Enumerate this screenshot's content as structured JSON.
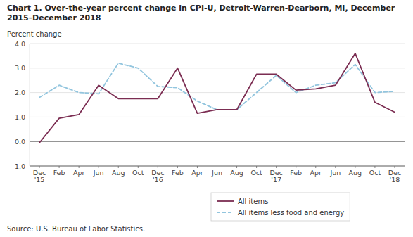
{
  "chart_data": {
    "type": "line",
    "title": "Chart 1. Over-the-year percent change in CPI-U, Detroit-Warren-Dearborn, MI, December\n2015–December 2018",
    "y_label": "Percent change",
    "annotations": [
      "Source: U.S. Bureau of Labor Statistics."
    ],
    "categories": [
      "Dec\n'15",
      "Feb",
      "Apr",
      "Jun",
      "Aug",
      "Oct",
      "Dec\n'16",
      "Feb",
      "Apr",
      "Jun",
      "Aug",
      "Oct",
      "Dec\n'17",
      "Feb",
      "Apr",
      "Jun",
      "Aug",
      "Oct",
      "Dec\n'18"
    ],
    "series": [
      {
        "name": "All items",
        "color": "#7b2d52",
        "line_style": "solid",
        "values": [
          -0.05,
          0.95,
          1.1,
          2.3,
          1.75,
          1.75,
          1.75,
          3.0,
          1.15,
          1.3,
          1.3,
          2.75,
          2.75,
          2.1,
          2.15,
          2.3,
          3.6,
          1.6,
          1.2
        ]
      },
      {
        "name": "All items less food and energy",
        "color": "#92c5de",
        "line_style": "dashed",
        "values": [
          1.8,
          2.3,
          2.0,
          1.95,
          3.2,
          3.0,
          2.25,
          2.2,
          1.65,
          1.3,
          1.3,
          2.0,
          2.7,
          2.0,
          2.3,
          2.4,
          3.15,
          2.0,
          2.05
        ]
      }
    ],
    "ylim": [
      -1.0,
      4.0
    ],
    "yticks": [
      {
        "value": -1.0,
        "label": "-1.0"
      },
      {
        "value": 0.0,
        "label": "0.0"
      },
      {
        "value": 1.0,
        "label": "1.0"
      },
      {
        "value": 2.0,
        "label": "2.0"
      },
      {
        "value": 3.0,
        "label": "3.0"
      },
      {
        "value": 4.0,
        "label": "4.0"
      }
    ],
    "grid": true,
    "legend": "bottom"
  }
}
